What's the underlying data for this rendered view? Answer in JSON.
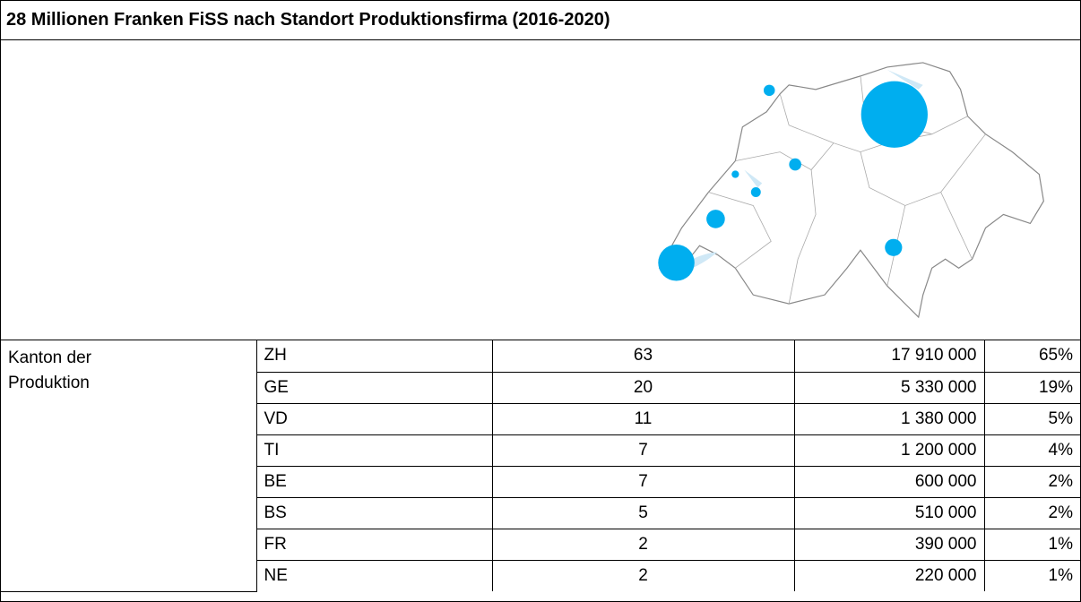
{
  "title": "28 Millionen Franken FiSS nach Standort Produktionsfirma (2016-2020)",
  "table": {
    "row_header": [
      "Kanton der",
      "Produktion"
    ],
    "rows": [
      [
        "ZH",
        "63",
        "17 910 000",
        "65%"
      ],
      [
        "GE",
        "20",
        "5 330 000",
        "19%"
      ],
      [
        "VD",
        "11",
        "1 380 000",
        "5%"
      ],
      [
        "TI",
        "7",
        "1 200 000",
        "4%"
      ],
      [
        "BE",
        "7",
        "600 000",
        "2%"
      ],
      [
        "BS",
        "5",
        "510 000",
        "2%"
      ],
      [
        "FR",
        "2",
        "390 000",
        "1%"
      ],
      [
        "NE",
        "2",
        "220 000",
        "1%"
      ]
    ]
  }
}
